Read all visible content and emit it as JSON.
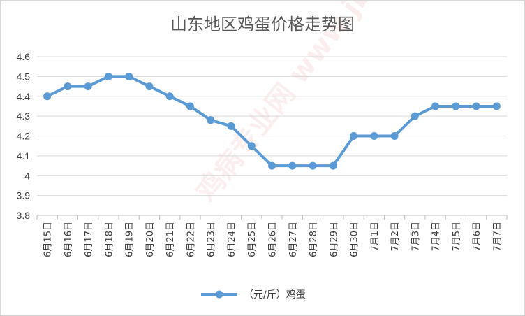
{
  "chart_data": {
    "type": "line",
    "title": "山东地区鸡蛋价格走势图",
    "xlabel": "",
    "ylabel": "",
    "ylim": [
      3.8,
      4.6
    ],
    "yticks": [
      "3.8",
      "3.9",
      "4",
      "4.1",
      "4.2",
      "4.3",
      "4.4",
      "4.5",
      "4.6"
    ],
    "grid": true,
    "legend_position": "bottom",
    "categories": [
      "6月15日",
      "6月16日",
      "6月17日",
      "6月18日",
      "6月19日",
      "6月20日",
      "6月21日",
      "6月22日",
      "6月23日",
      "6月24日",
      "6月25日",
      "6月26日",
      "6月27日",
      "6月28日",
      "6月29日",
      "6月30日",
      "7月1日",
      "7月2日",
      "7月3日",
      "7月4日",
      "7月5日",
      "7月6日",
      "7月7日"
    ],
    "series": [
      {
        "name": "（元/斤）鸡蛋",
        "color": "#5b9bd5",
        "values": [
          4.4,
          4.45,
          4.45,
          4.5,
          4.5,
          4.45,
          4.4,
          4.35,
          4.28,
          4.25,
          4.15,
          4.05,
          4.05,
          4.05,
          4.05,
          4.2,
          4.2,
          4.2,
          4.3,
          4.35,
          4.35,
          4.35,
          4.35
        ]
      }
    ],
    "watermark": "鸡病专业网 www.jbzyw.com"
  }
}
